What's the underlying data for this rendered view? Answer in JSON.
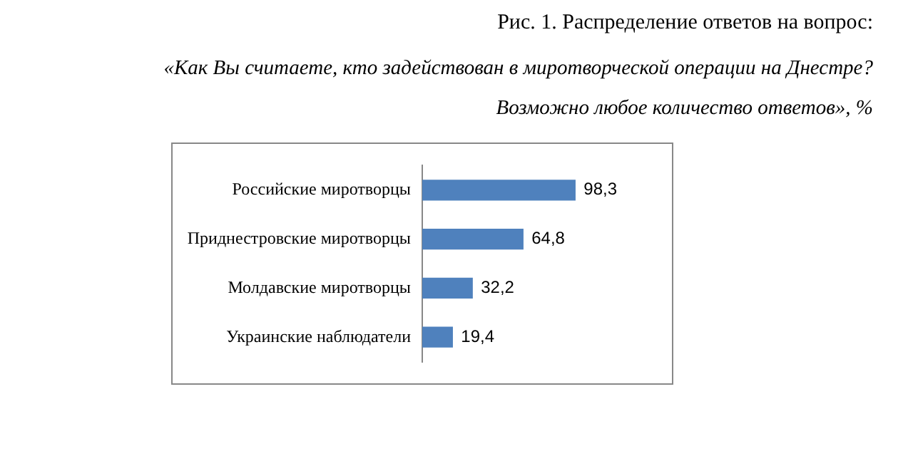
{
  "chart_data": {
    "type": "bar",
    "orientation": "horizontal",
    "title": "Рис. 1. Распределение ответов на вопрос:",
    "subtitle": "«Как Вы считаете, кто задействован в миротворческой операции на Днестре?\nВозможно любое количество ответов», %",
    "categories": [
      "Российские миротворцы",
      "Приднестровские миротворцы",
      "Молдавские миротворцы",
      "Украинские наблюдатели"
    ],
    "values": [
      98.3,
      64.8,
      32.2,
      19.4
    ],
    "color": "#4f81bd",
    "data_labels": true,
    "value_labels": [
      "98,3",
      "64,8",
      "32,2",
      "19,4"
    ],
    "grid": false,
    "legend": false
  }
}
